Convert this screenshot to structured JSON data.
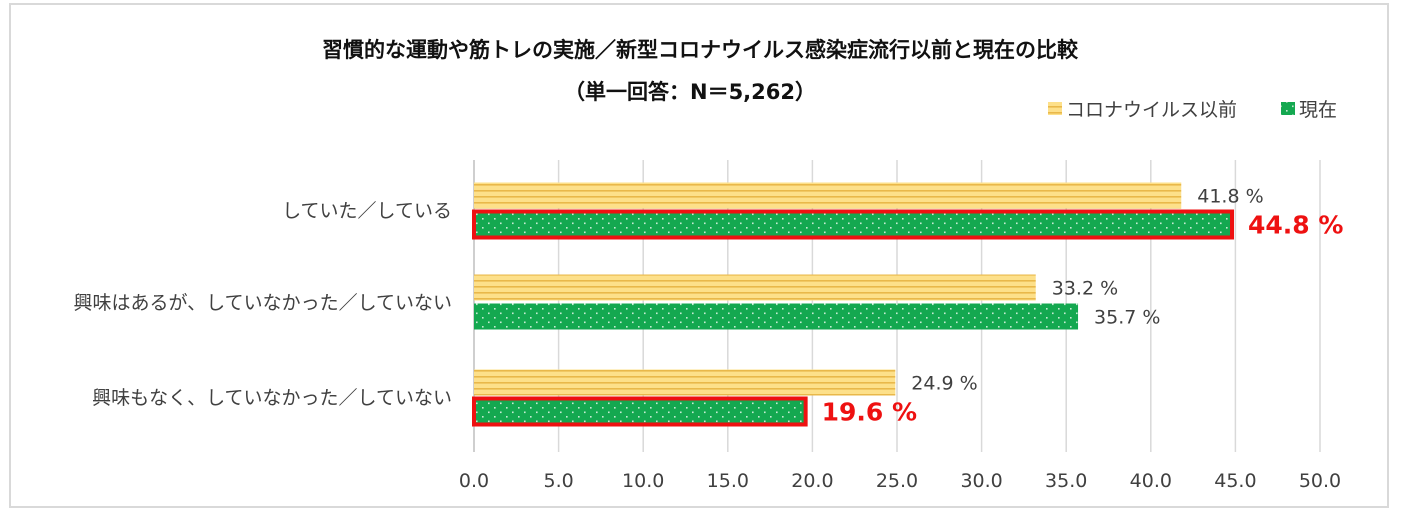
{
  "chart_data": {
    "type": "bar",
    "orientation": "horizontal",
    "title": "習慣的な運動や筋トレの実施／新型コロナウイルス感染症流行以前と現在の比較",
    "subtitle": "（単一回答：N＝5,262）",
    "categories": [
      "していた／している",
      "興味はあるが、していなかった／していない",
      "興味もなく、していなかった／していない"
    ],
    "series": [
      {
        "name": "コロナウイルス以前",
        "values": [
          41.8,
          33.2,
          24.9
        ],
        "labels": [
          "41.8 %",
          "33.2 %",
          "24.9 %"
        ],
        "color": "#fde08a",
        "stripe": "#e9b84a"
      },
      {
        "name": "現在",
        "values": [
          44.8,
          35.7,
          19.6
        ],
        "labels": [
          "44.8 %",
          "35.7 %",
          "19.6 %"
        ],
        "color": "#14a850",
        "dot": "#c6ecd3"
      }
    ],
    "highlighted": [
      {
        "series": 1,
        "category": 0
      },
      {
        "series": 1,
        "category": 2
      }
    ],
    "highlight_color": "#ee1111",
    "xlim": [
      0,
      50
    ],
    "xticks": [
      "0.0",
      "5.0",
      "10.0",
      "15.0",
      "20.0",
      "25.0",
      "30.0",
      "35.0",
      "40.0",
      "45.0",
      "50.0"
    ],
    "grid": "vertical",
    "legend_position": "top-right"
  }
}
